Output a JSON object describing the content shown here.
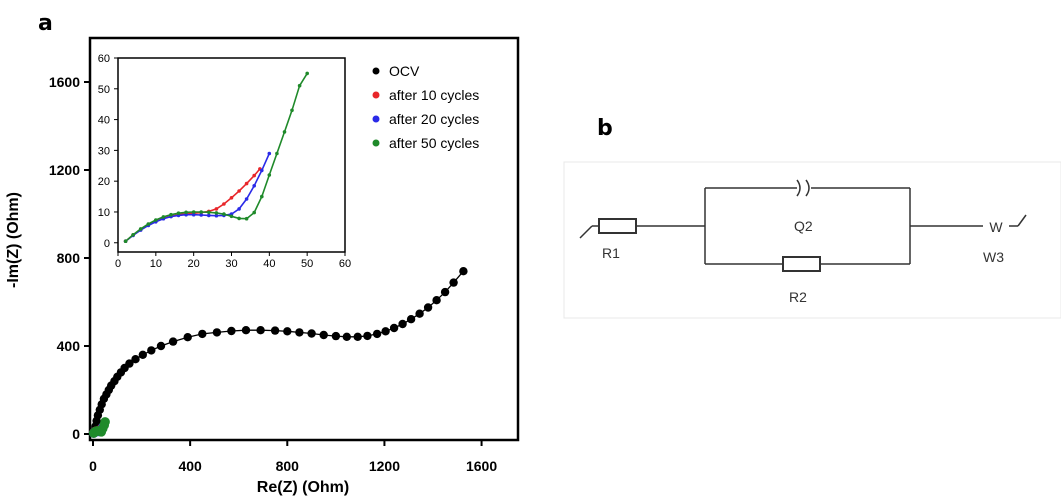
{
  "panel_a_letter": "a",
  "panel_b_letter": "b",
  "chart_data": [
    {
      "type": "scatter",
      "xlabel": "Re(Z) (Ohm)",
      "ylabel": "-Im(Z) (Ohm)",
      "xlim": [
        0,
        1750
      ],
      "ylim": [
        0,
        1800
      ],
      "xticks": [
        "0",
        "400",
        "800",
        "1200",
        "1600"
      ],
      "yticks": [
        "0",
        "400",
        "800",
        "1200",
        "1600"
      ],
      "grid": false,
      "legend_position": "top-right",
      "series": [
        {
          "name": "OCV",
          "color": "#000000",
          "x": [
            5,
            10,
            15,
            20,
            28,
            36,
            45,
            55,
            65,
            75,
            88,
            100,
            115,
            130,
            150,
            175,
            205,
            240,
            280,
            330,
            390,
            450,
            510,
            570,
            630,
            690,
            750,
            800,
            850,
            900,
            950,
            1000,
            1045,
            1090,
            1130,
            1170,
            1205,
            1240,
            1275,
            1310,
            1345,
            1380,
            1415,
            1450,
            1485,
            1525
          ],
          "y": [
            15,
            35,
            60,
            85,
            110,
            135,
            160,
            180,
            200,
            220,
            240,
            260,
            280,
            300,
            320,
            340,
            360,
            380,
            400,
            420,
            440,
            455,
            462,
            468,
            472,
            472,
            470,
            467,
            462,
            457,
            450,
            445,
            442,
            442,
            446,
            455,
            467,
            482,
            500,
            522,
            547,
            575,
            608,
            645,
            688,
            740
          ]
        },
        {
          "name": "after 10 cycles",
          "color": "#e8262a",
          "x": [
            3,
            8,
            14,
            20,
            27,
            35
          ],
          "y": [
            5,
            11,
            13,
            13,
            15,
            25
          ]
        },
        {
          "name": "after 20 cycles",
          "color": "#2a2ae8",
          "x": [
            3,
            8,
            14,
            20,
            27,
            34,
            40
          ],
          "y": [
            4,
            10,
            12,
            12,
            12,
            18,
            30
          ]
        },
        {
          "name": "after 50 cycles",
          "color": "#1f8a2a",
          "x": [
            3,
            8,
            14,
            20,
            27,
            34,
            40,
            46,
            50
          ],
          "y": [
            4,
            10,
            13,
            14,
            14,
            10,
            25,
            40,
            55
          ]
        }
      ]
    },
    {
      "type": "line",
      "xlim": [
        0,
        60
      ],
      "ylim": [
        -3,
        60
      ],
      "xticks": [
        "0",
        "10",
        "20",
        "30",
        "40",
        "50",
        "60"
      ],
      "yticks": [
        "0",
        "10",
        "20",
        "30",
        "40",
        "50",
        "60"
      ],
      "grid": false,
      "series": [
        {
          "name": "after 10 cycles",
          "color": "#e8262a",
          "x": [
            2,
            4,
            6,
            8,
            10,
            12,
            14,
            16,
            18,
            20,
            22,
            24,
            26,
            28,
            30,
            32,
            34,
            36,
            37.5
          ],
          "y": [
            0.5,
            2.5,
            4.2,
            5.7,
            6.9,
            7.9,
            8.6,
            9.1,
            9.4,
            9.6,
            9.8,
            10.2,
            11,
            12.6,
            14.6,
            16.8,
            19.2,
            21.8,
            24
          ]
        },
        {
          "name": "after 20 cycles",
          "color": "#2a2ae8",
          "x": [
            2,
            4,
            6,
            8,
            10,
            12,
            14,
            16,
            18,
            20,
            22,
            24,
            26,
            28,
            30,
            32,
            34,
            36,
            38,
            40
          ],
          "y": [
            0.5,
            2.4,
            4.1,
            5.6,
            6.8,
            7.8,
            8.5,
            8.9,
            9.1,
            9.1,
            9,
            8.9,
            8.8,
            8.9,
            9.3,
            11,
            14.2,
            18.5,
            23.5,
            29
          ]
        },
        {
          "name": "after 50 cycles",
          "color": "#1f8a2a",
          "x": [
            2,
            4,
            6,
            8,
            10,
            12,
            14,
            16,
            18,
            20,
            22,
            24,
            26,
            28,
            30,
            32,
            34,
            36,
            38,
            40,
            42,
            44,
            46,
            48,
            50
          ],
          "y": [
            0.5,
            2.6,
            4.5,
            6.1,
            7.4,
            8.4,
            9.1,
            9.6,
            9.9,
            10,
            10,
            9.9,
            9.7,
            9.3,
            8.6,
            7.9,
            7.8,
            9.8,
            15,
            22,
            29,
            36,
            43,
            51,
            55
          ]
        }
      ]
    }
  ],
  "circuit": {
    "r1_label": "R1",
    "q2_label": "Q2",
    "r2_label": "R2",
    "w3_label": "W3",
    "w3_symbol": "W"
  }
}
